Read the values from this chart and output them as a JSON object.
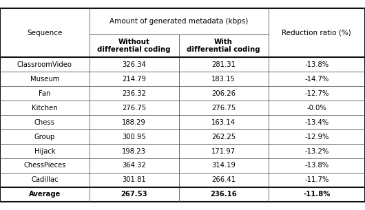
{
  "group_header": "Amount of generated metadata (kbps)",
  "sub_headers": [
    "Without\ndifferential coding",
    "With\ndifferential coding"
  ],
  "col0_header": "Sequence",
  "col3_header": "Reduction ratio (%)",
  "rows": [
    [
      "ClassroomVideo",
      "326.34",
      "281.31",
      "-13.8%"
    ],
    [
      "Museum",
      "214.79",
      "183.15",
      "-14.7%"
    ],
    [
      "Fan",
      "236.32",
      "206.26",
      "-12.7%"
    ],
    [
      "Kitchen",
      "276.75",
      "276.75",
      "-0.0%"
    ],
    [
      "Chess",
      "188.29",
      "163.14",
      "-13.4%"
    ],
    [
      "Group",
      "300.95",
      "262.25",
      "-12.9%"
    ],
    [
      "Hijack",
      "198.23",
      "171.97",
      "-13.2%"
    ],
    [
      "ChessPieces",
      "364.32",
      "314.19",
      "-13.8%"
    ],
    [
      "Cadillac",
      "301.81",
      "266.41",
      "-11.7%"
    ]
  ],
  "avg_row": [
    "Average",
    "267.53",
    "236.16",
    "-11.8%"
  ],
  "bg_color": "#ffffff",
  "line_color": "#555555",
  "thick_line_color": "#111111",
  "font_size": 7.2,
  "header_font_size": 7.5
}
